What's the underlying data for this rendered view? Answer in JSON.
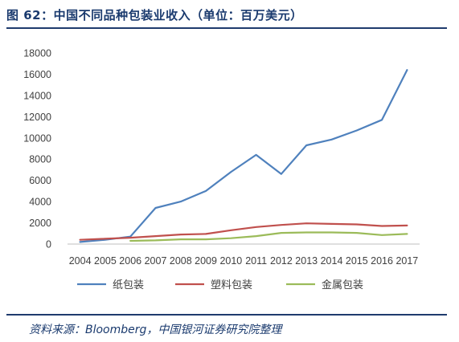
{
  "header": {
    "title": "图 62：中国不同品种包装业收入（单位：百万美元）"
  },
  "footer": {
    "source": "资料来源：Bloomberg，中国银河证券研究院整理"
  },
  "chart_data": {
    "type": "line",
    "title": "",
    "xlabel": "",
    "ylabel": "",
    "ylim": [
      0,
      18000
    ],
    "yticks": [
      "0",
      "2000",
      "4000",
      "6000",
      "8000",
      "10000",
      "12000",
      "14000",
      "16000",
      "18000"
    ],
    "ytick_values": [
      0,
      2000,
      4000,
      6000,
      8000,
      10000,
      12000,
      14000,
      16000,
      18000
    ],
    "categories": [
      "2004",
      "2005",
      "2006",
      "2007",
      "2008",
      "2009",
      "2010",
      "2011",
      "2012",
      "2013",
      "2014",
      "2015",
      "2016",
      "2017"
    ],
    "grid": false,
    "legend": "bottom",
    "series": [
      {
        "name": "纸包装",
        "color": "#4f81bd",
        "values": [
          200,
          400,
          700,
          3400,
          4000,
          5000,
          6800,
          8400,
          6600,
          9300,
          9850,
          10700,
          11700,
          16400
        ]
      },
      {
        "name": "塑料包装",
        "color": "#c0504d",
        "values": [
          400,
          500,
          600,
          750,
          900,
          950,
          1300,
          1600,
          1800,
          1950,
          1900,
          1850,
          1700,
          1750
        ]
      },
      {
        "name": "金属包装",
        "color": "#9bbb59",
        "start_index": 2,
        "values": [
          null,
          null,
          300,
          350,
          450,
          450,
          550,
          750,
          1050,
          1100,
          1100,
          1050,
          850,
          950
        ]
      }
    ]
  }
}
